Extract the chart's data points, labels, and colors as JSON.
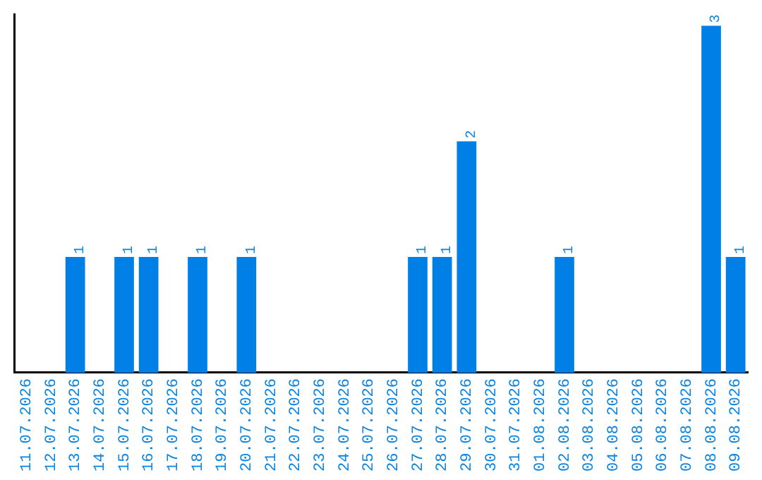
{
  "chart_data": {
    "type": "bar",
    "categories": [
      "11.07.2026",
      "12.07.2026",
      "13.07.2026",
      "14.07.2026",
      "15.07.2026",
      "16.07.2026",
      "17.07.2026",
      "18.07.2026",
      "19.07.2026",
      "20.07.2026",
      "21.07.2026",
      "22.07.2026",
      "23.07.2026",
      "24.07.2026",
      "25.07.2026",
      "26.07.2026",
      "27.07.2026",
      "28.07.2026",
      "29.07.2026",
      "30.07.2026",
      "31.07.2026",
      "01.08.2026",
      "02.08.2026",
      "03.08.2026",
      "04.08.2026",
      "05.08.2026",
      "06.08.2026",
      "07.08.2026",
      "08.08.2026",
      "09.08.2026"
    ],
    "values": [
      0,
      0,
      1,
      0,
      1,
      1,
      0,
      1,
      0,
      1,
      0,
      0,
      0,
      0,
      0,
      0,
      1,
      1,
      2,
      0,
      0,
      0,
      1,
      0,
      0,
      0,
      0,
      0,
      3,
      1
    ],
    "value_labels": [
      null,
      null,
      "1",
      null,
      "1",
      "1",
      null,
      "1",
      null,
      "1",
      null,
      null,
      null,
      null,
      null,
      null,
      "1",
      "1",
      "2",
      null,
      null,
      null,
      "1",
      null,
      null,
      null,
      null,
      null,
      "3",
      "1"
    ],
    "color": "#0080e6",
    "ylim": [
      0,
      3.1
    ],
    "tick_labels": "x",
    "grid": false,
    "legend": false
  }
}
